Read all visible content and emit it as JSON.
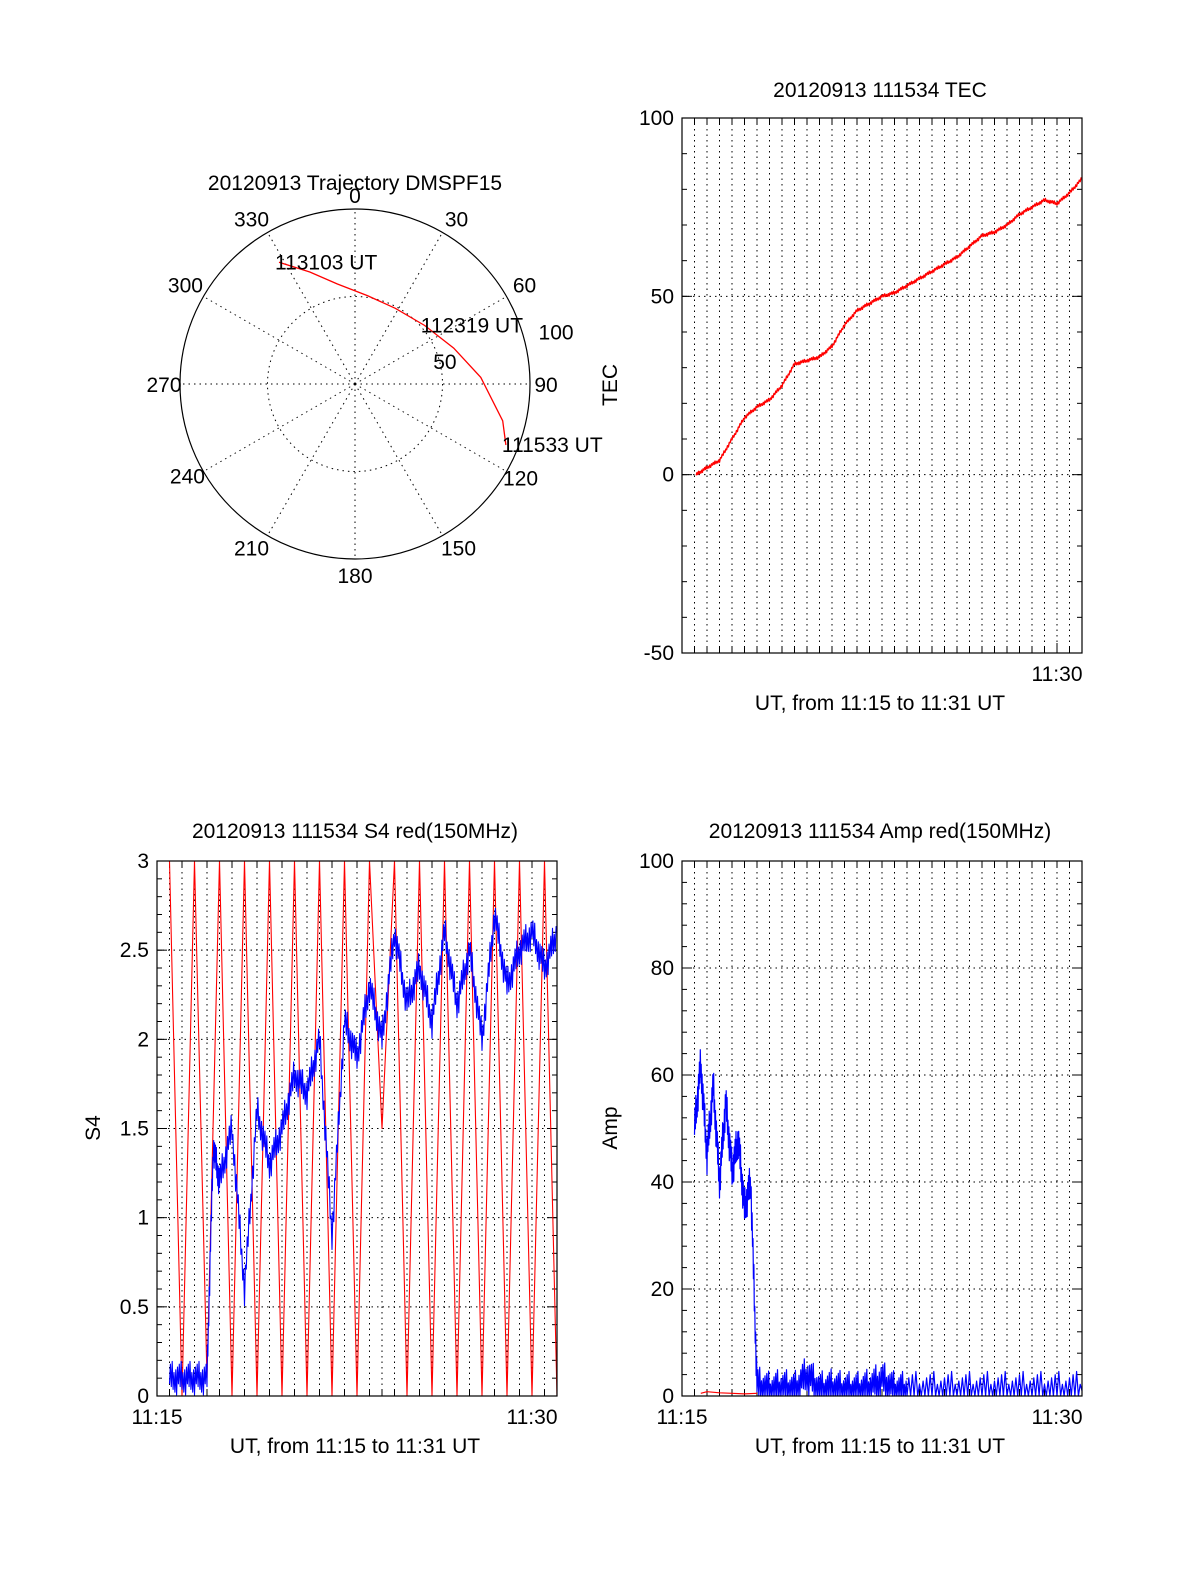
{
  "chart_data": [
    {
      "type": "polar",
      "title": "20120913 Trajectory DMSPF15",
      "azimuth_labels": [
        "0",
        "30",
        "60",
        "90",
        "120",
        "150",
        "180",
        "210",
        "240",
        "270",
        "300",
        "330"
      ],
      "radial_labels": [
        "50",
        "100"
      ],
      "rlim": [
        0,
        100
      ],
      "grid": true,
      "series": [
        {
          "color": "#ff0000",
          "points": [
            {
              "azimuth": 328,
              "r": 82
            },
            {
              "azimuth": 338,
              "r": 69
            },
            {
              "azimuth": 350,
              "r": 58
            },
            {
              "azimuth": 8,
              "r": 51
            },
            {
              "azimuth": 28,
              "r": 49
            },
            {
              "azimuth": 50,
              "r": 52
            },
            {
              "azimuth": 70,
              "r": 60
            },
            {
              "azimuth": 87,
              "r": 72
            },
            {
              "azimuth": 104,
              "r": 87
            },
            {
              "azimuth": 112,
              "r": 93
            }
          ]
        }
      ],
      "annotations": [
        {
          "text": "113103 UT",
          "azimuth": 328,
          "r": 82
        },
        {
          "text": "112319 UT",
          "azimuth": 50,
          "r": 52
        },
        {
          "text": "111533 UT",
          "azimuth": 112,
          "r": 93
        }
      ]
    },
    {
      "type": "line",
      "title": "20120913 111534 TEC",
      "xlabel": "UT, from 11:15 to 11:31 UT",
      "ylabel": "TEC",
      "xlim": [
        "11:15:00",
        "11:31:00"
      ],
      "ylim": [
        -50,
        100
      ],
      "yticks": [
        100,
        50,
        0,
        -50
      ],
      "xticks": [
        {
          "value": "11:30",
          "label": "11:30"
        }
      ],
      "xgrid_minutes": [
        11.5,
        12,
        12.5,
        13,
        13.5,
        14,
        14.5,
        15,
        15.5,
        16,
        16.5,
        17,
        17.5,
        18,
        18.5,
        19,
        19.5,
        20,
        20.5,
        21,
        21.5,
        22,
        22.5,
        23,
        23.5,
        24,
        24.5,
        25,
        25.5,
        26,
        26.5,
        27,
        27.5,
        28,
        28.5,
        29,
        29.5,
        30
      ],
      "grid": true,
      "series": [
        {
          "color": "#ff0000",
          "x": [
            "11:15:34",
            "11:16:00",
            "11:16:30",
            "11:17:00",
            "11:17:30",
            "11:18:00",
            "11:18:30",
            "11:19:00",
            "11:19:30",
            "11:20:00",
            "11:20:30",
            "11:21:00",
            "11:21:30",
            "11:22:00",
            "11:22:30",
            "11:23:00",
            "11:23:30",
            "11:24:00",
            "11:24:30",
            "11:25:00",
            "11:25:30",
            "11:26:00",
            "11:26:30",
            "11:27:00",
            "11:27:30",
            "11:28:00",
            "11:28:30",
            "11:29:00",
            "11:29:30",
            "11:30:00",
            "11:30:30",
            "11:31:00"
          ],
          "values": [
            0,
            2,
            4,
            10,
            16,
            19,
            21,
            25,
            31,
            32,
            33,
            36,
            42,
            46,
            48,
            50,
            51,
            53,
            55,
            57,
            59,
            61,
            64,
            67,
            68,
            70,
            73,
            75,
            77,
            76,
            79,
            83
          ]
        }
      ]
    },
    {
      "type": "line",
      "title": "20120913 111534 S4 red(150MHz)",
      "xlabel": "UT, from 11:15 to 11:31 UT",
      "ylabel": "S4",
      "xlim": [
        "11:15:00",
        "11:31:00"
      ],
      "ylim": [
        0,
        3
      ],
      "yticks": [
        3,
        2.5,
        2,
        1.5,
        1,
        0.5,
        0
      ],
      "ytick_labels": [
        "3",
        "2.5",
        "2",
        "1.5",
        "1",
        "0.5",
        "0"
      ],
      "xticks": [
        {
          "value": "11:15",
          "label": "11:15"
        },
        {
          "value": "11:30",
          "label": "11:30"
        }
      ],
      "grid": true,
      "series": [
        {
          "color": "#ff0000",
          "x": [
            "11:15:30",
            "11:16:00",
            "11:16:30",
            "11:17:00",
            "11:17:30",
            "11:18:00",
            "11:18:30",
            "11:19:00",
            "11:19:30",
            "11:20:00",
            "11:20:30",
            "11:21:00",
            "11:21:30",
            "11:22:00",
            "11:22:30",
            "11:23:00",
            "11:23:30",
            "11:24:00",
            "11:24:30",
            "11:25:00",
            "11:25:30",
            "11:26:00",
            "11:26:30",
            "11:27:00",
            "11:27:30",
            "11:28:00",
            "11:28:30",
            "11:29:00",
            "11:29:30",
            "11:30:00",
            "11:30:30",
            "11:31:00"
          ],
          "values": [
            3,
            0,
            3,
            0.1,
            3,
            0,
            3,
            0,
            3,
            0,
            3,
            0,
            3,
            0,
            3,
            0,
            3,
            1.5,
            3,
            0,
            3,
            0,
            3,
            0,
            3,
            0,
            3,
            0,
            3,
            0,
            3,
            0
          ]
        },
        {
          "color": "#0000ff",
          "x": [
            "11:15:30",
            "11:16:00",
            "11:16:30",
            "11:17:00",
            "11:17:15",
            "11:17:30",
            "11:18:00",
            "11:18:30",
            "11:19:00",
            "11:19:30",
            "11:20:00",
            "11:20:30",
            "11:21:00",
            "11:21:30",
            "11:22:00",
            "11:22:30",
            "11:23:00",
            "11:23:30",
            "11:24:00",
            "11:24:30",
            "11:25:00",
            "11:25:30",
            "11:26:00",
            "11:26:30",
            "11:27:00",
            "11:27:30",
            "11:28:00",
            "11:28:30",
            "11:29:00",
            "11:29:30",
            "11:30:00",
            "11:30:30",
            "11:31:00"
          ],
          "values": [
            0.1,
            0.1,
            0.1,
            0.1,
            1.4,
            1.2,
            1.5,
            0.6,
            1.6,
            1.3,
            1.5,
            1.8,
            1.7,
            2.0,
            0.9,
            2.1,
            1.9,
            2.3,
            2.0,
            2.6,
            2.2,
            2.4,
            2.1,
            2.6,
            2.2,
            2.5,
            2.0,
            2.7,
            2.3,
            2.5,
            2.6,
            2.4,
            2.6
          ]
        }
      ]
    },
    {
      "type": "line",
      "title": "20120913 111534 Amp red(150MHz)",
      "xlabel": "UT, from 11:15 to 11:31 UT",
      "ylabel": "Amp",
      "xlim": [
        "11:15:00",
        "11:31:00"
      ],
      "ylim": [
        0,
        100
      ],
      "yticks": [
        100,
        80,
        60,
        40,
        20,
        0
      ],
      "xticks": [
        {
          "value": "11:15",
          "label": "11:15"
        },
        {
          "value": "11:30",
          "label": "11:30"
        }
      ],
      "grid": true,
      "series": [
        {
          "color": "#ff0000",
          "x": [
            "11:15:45",
            "11:16:00",
            "11:16:30",
            "11:17:00",
            "11:17:30",
            "11:18:00"
          ],
          "values": [
            0.5,
            0.8,
            0.6,
            0.5,
            0.4,
            0.5
          ]
        },
        {
          "color": "#0000ff",
          "x": [
            "11:15:30",
            "11:15:45",
            "11:16:00",
            "11:16:15",
            "11:16:30",
            "11:16:45",
            "11:17:00",
            "11:17:15",
            "11:17:30",
            "11:17:45",
            "11:18:00",
            "11:18:30",
            "11:19:00",
            "11:19:30",
            "11:20:00",
            "11:20:30",
            "11:21:00",
            "11:21:30",
            "11:22:00",
            "11:22:30",
            "11:23:00",
            "11:23:30",
            "11:24:00",
            "11:25:00",
            "11:26:00",
            "11:27:00",
            "11:28:00",
            "11:29:00",
            "11:30:00",
            "11:31:00"
          ],
          "values": [
            50,
            62,
            45,
            58,
            40,
            55,
            42,
            48,
            35,
            40,
            2,
            1,
            1.5,
            1,
            4,
            1,
            1.5,
            1,
            1,
            1.5,
            3,
            1,
            1,
            1,
            1,
            1,
            1,
            1,
            1,
            1
          ]
        }
      ]
    }
  ]
}
